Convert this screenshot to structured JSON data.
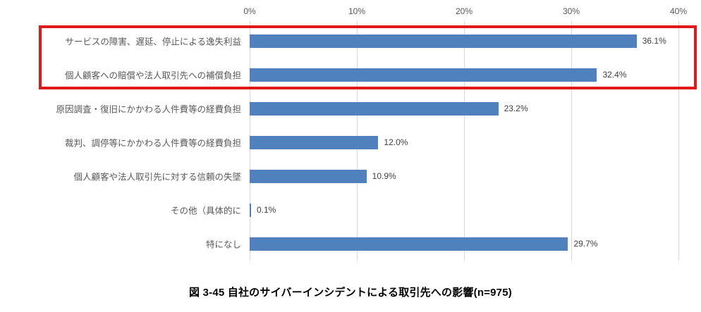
{
  "caption": "図 3-45 自社のサイバーインシデントによる取引先への影響(n=975)",
  "chart_data": {
    "type": "bar",
    "orientation": "horizontal",
    "title": "",
    "xlabel": "",
    "ylabel": "",
    "categories": [
      "サービスの障害、遅延、停止による逸失利益",
      "個人顧客への賠償や法人取引先への補償負担",
      "原因調査・復旧にかかわる人件費等の経費負担",
      "裁判、調停等にかかわる人件費等の経費負担",
      "個人顧客や法人取引先に対する信頼の失墜",
      "その他（具体的に",
      "特になし"
    ],
    "values": [
      36.1,
      32.4,
      23.2,
      12.0,
      10.9,
      0.1,
      29.7
    ],
    "value_labels": [
      "36.1%",
      "32.4%",
      "23.2%",
      "12.0%",
      "10.9%",
      "0.1%",
      "29.7%"
    ],
    "x_ticks": [
      "0%",
      "10%",
      "20%",
      "30%",
      "40%"
    ],
    "xlim": [
      0,
      40
    ],
    "grid": "vertical",
    "legend": "none",
    "bar_color": "#4f81bd",
    "gridline_color": "#d9d9d9",
    "tick_text_color": "#595959",
    "value_text_color": "#404040",
    "highlight": {
      "rows": [
        0,
        1
      ],
      "shape": "rectangle-outline",
      "color": "#e01a1a"
    }
  }
}
